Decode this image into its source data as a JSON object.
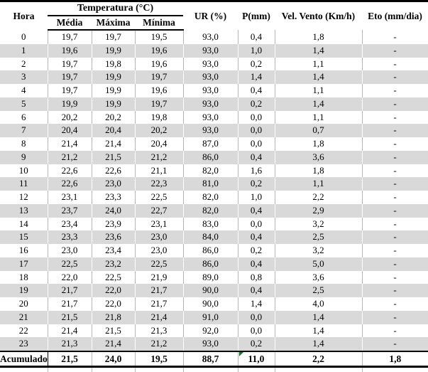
{
  "table": {
    "header": {
      "hora": "Hora",
      "temperatura_group": "Temperatura (°C)",
      "media": "Média",
      "maxima": "Máxima",
      "minima": "Mínima",
      "ur": "UR (%)",
      "p": "P(mm)",
      "vento": "Vel. Vento (Km/h)",
      "eto": "Eto (mm/dia)"
    },
    "rows": [
      {
        "hora": "0",
        "media": "19,7",
        "maxima": "19,7",
        "minima": "19,5",
        "ur": "93,0",
        "p": "0,4",
        "vento": "1,8",
        "eto": "-"
      },
      {
        "hora": "1",
        "media": "19,6",
        "maxima": "19,9",
        "minima": "19,6",
        "ur": "93,0",
        "p": "1,0",
        "vento": "1,4",
        "eto": "-"
      },
      {
        "hora": "2",
        "media": "19,7",
        "maxima": "19,8",
        "minima": "19,6",
        "ur": "93,0",
        "p": "0,2",
        "vento": "1,1",
        "eto": "-"
      },
      {
        "hora": "3",
        "media": "19,7",
        "maxima": "19,9",
        "minima": "19,7",
        "ur": "93,0",
        "p": "1,4",
        "vento": "1,4",
        "eto": "-"
      },
      {
        "hora": "4",
        "media": "19,7",
        "maxima": "19,9",
        "minima": "19,6",
        "ur": "93,0",
        "p": "0,4",
        "vento": "1,1",
        "eto": "-"
      },
      {
        "hora": "5",
        "media": "19,9",
        "maxima": "19,9",
        "minima": "19,7",
        "ur": "93,0",
        "p": "0,2",
        "vento": "1,4",
        "eto": "-"
      },
      {
        "hora": "6",
        "media": "20,2",
        "maxima": "20,2",
        "minima": "19,8",
        "ur": "93,0",
        "p": "0,0",
        "vento": "1,1",
        "eto": "-"
      },
      {
        "hora": "7",
        "media": "20,4",
        "maxima": "20,4",
        "minima": "20,2",
        "ur": "93,0",
        "p": "0,0",
        "vento": "0,7",
        "eto": "-"
      },
      {
        "hora": "8",
        "media": "21,4",
        "maxima": "21,4",
        "minima": "20,4",
        "ur": "87,0",
        "p": "0,0",
        "vento": "1,8",
        "eto": "-"
      },
      {
        "hora": "9",
        "media": "21,2",
        "maxima": "21,5",
        "minima": "21,2",
        "ur": "86,0",
        "p": "0,4",
        "vento": "3,6",
        "eto": "-"
      },
      {
        "hora": "10",
        "media": "22,6",
        "maxima": "22,6",
        "minima": "21,1",
        "ur": "82,0",
        "p": "1,6",
        "vento": "1,8",
        "eto": "-"
      },
      {
        "hora": "11",
        "media": "22,6",
        "maxima": "23,0",
        "minima": "22,3",
        "ur": "81,0",
        "p": "0,2",
        "vento": "1,1",
        "eto": "-"
      },
      {
        "hora": "12",
        "media": "23,1",
        "maxima": "23,3",
        "minima": "22,5",
        "ur": "82,0",
        "p": "1,0",
        "vento": "2,2",
        "eto": "-"
      },
      {
        "hora": "13",
        "media": "23,7",
        "maxima": "24,0",
        "minima": "22,7",
        "ur": "82,0",
        "p": "0,4",
        "vento": "2,9",
        "eto": "-"
      },
      {
        "hora": "14",
        "media": "23,4",
        "maxima": "23,9",
        "minima": "23,1",
        "ur": "83,0",
        "p": "0,0",
        "vento": "3,2",
        "eto": "-"
      },
      {
        "hora": "15",
        "media": "23,3",
        "maxima": "23,6",
        "minima": "23,0",
        "ur": "84,0",
        "p": "0,4",
        "vento": "2,5",
        "eto": "-"
      },
      {
        "hora": "16",
        "media": "23,0",
        "maxima": "23,4",
        "minima": "23,0",
        "ur": "86,0",
        "p": "0,2",
        "vento": "3,2",
        "eto": "-"
      },
      {
        "hora": "17",
        "media": "22,5",
        "maxima": "23,2",
        "minima": "22,5",
        "ur": "86,0",
        "p": "0,4",
        "vento": "5,0",
        "eto": "-"
      },
      {
        "hora": "18",
        "media": "22,0",
        "maxima": "22,5",
        "minima": "21,9",
        "ur": "89,0",
        "p": "0,8",
        "vento": "3,6",
        "eto": "-"
      },
      {
        "hora": "19",
        "media": "21,7",
        "maxima": "22,0",
        "minima": "21,7",
        "ur": "90,0",
        "p": "0,4",
        "vento": "2,5",
        "eto": "-"
      },
      {
        "hora": "20",
        "media": "21,7",
        "maxima": "22,0",
        "minima": "21,7",
        "ur": "90,0",
        "p": "1,4",
        "vento": "4,0",
        "eto": "-"
      },
      {
        "hora": "21",
        "media": "21,5",
        "maxima": "21,8",
        "minima": "21,4",
        "ur": "91,0",
        "p": "0,0",
        "vento": "1,4",
        "eto": "-"
      },
      {
        "hora": "22",
        "media": "21,4",
        "maxima": "21,5",
        "minima": "21,3",
        "ur": "92,0",
        "p": "0,0",
        "vento": "1,4",
        "eto": "-"
      },
      {
        "hora": "23",
        "media": "21,3",
        "maxima": "21,4",
        "minima": "21,2",
        "ur": "93,0",
        "p": "0,2",
        "vento": "1,4",
        "eto": "-"
      }
    ],
    "footer": {
      "label": "Acumulado",
      "media": "21,5",
      "maxima": "24,0",
      "minima": "19,5",
      "ur": "88,7",
      "p": "11,0",
      "vento": "2,2",
      "eto": "1,8"
    }
  },
  "colors": {
    "banded_row": "#d9d9d9",
    "grid_line": "#b7b7b7",
    "rule_line": "#000000",
    "error_indicator_green": "#0a7d26"
  }
}
